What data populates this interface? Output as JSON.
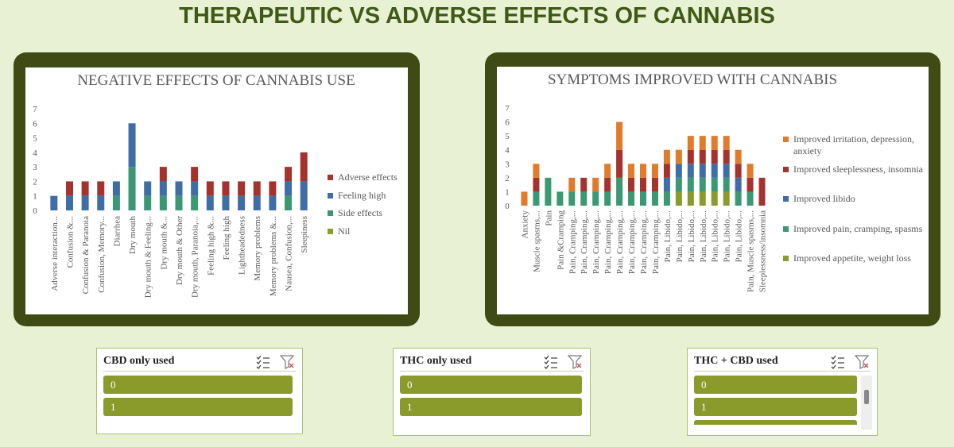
{
  "title": "THERAPEUTIC VS ADVERSE EFFECTS OF CANNABIS",
  "chart_data": [
    {
      "type": "bar",
      "stacked": true,
      "title": "NEGATIVE EFFECTS OF CANNABIS USE",
      "categories": [
        "Adverse interaction...",
        "Confusion &...",
        "Confusion & Paranoia",
        "Confusion, Memory...",
        "Diarrhea",
        "Dry mouth",
        "Dry mouth & Feeling...",
        "Dry mouth &...",
        "Dry mouth & Other",
        "Dry mouth, Paranoia,...",
        "Feeling high &...",
        "Feeling high",
        "Lightheadedness",
        "Memory problems",
        "Memory problems &...",
        "Nausea, Confusion,...",
        "Sleepiness"
      ],
      "series": [
        {
          "name": "Adverse effects",
          "color": "#a5332d",
          "values": [
            0,
            1,
            1,
            1,
            0,
            0,
            0,
            1,
            0,
            1,
            1,
            1,
            1,
            1,
            1,
            1,
            2
          ]
        },
        {
          "name": "Feeling high",
          "color": "#3f6ea6",
          "values": [
            1,
            1,
            1,
            1,
            1,
            3,
            1,
            1,
            1,
            1,
            1,
            1,
            1,
            1,
            1,
            1,
            2
          ]
        },
        {
          "name": "Side effects",
          "color": "#3a9873",
          "values": [
            0,
            0,
            0,
            0,
            1,
            3,
            1,
            1,
            1,
            1,
            0,
            0,
            0,
            0,
            0,
            1,
            0
          ]
        },
        {
          "name": "Nil",
          "color": "#8a9a2b",
          "values": [
            0,
            0,
            0,
            0,
            0,
            0,
            0,
            0,
            0,
            0,
            0,
            0,
            0,
            0,
            0,
            0,
            0
          ]
        }
      ],
      "ylim": [
        0,
        7
      ],
      "yticks": [
        0,
        1,
        2,
        3,
        4,
        5,
        6,
        7
      ],
      "grid": false,
      "legend": "right"
    },
    {
      "type": "bar",
      "stacked": true,
      "title": "SYMPTOMS IMPROVED WITH CANNABIS",
      "categories": [
        "Anxiety",
        "Muscle spasms,...",
        "Pain",
        "Pain &Cramping",
        "Pain, Cramping,...",
        "Pain, Cramping,...",
        "Pain, Cramping,...",
        "Pain, Cramping,...",
        "Pain, Cramping,...",
        "Pain, Cramping,...",
        "Pain, Cramping,...",
        "Pain, Cramping,...",
        "Pain, Libido,...",
        "Pain, Libido,...",
        "Pain, Libido,...",
        "Pain, Libido,...",
        "Pain, Libido,...",
        "Pain, Libido,...",
        "Pain, Libido,...",
        "Pain, Muscle spasms,...",
        "Sleeplessness/insomnia"
      ],
      "series": [
        {
          "name": "Improved irritation, depression, anxiety",
          "color": "#e07b2b",
          "values": [
            1,
            1,
            0,
            0,
            1,
            0,
            1,
            1,
            2,
            1,
            1,
            1,
            1,
            1,
            1,
            1,
            1,
            1,
            1,
            1,
            0
          ]
        },
        {
          "name": "Improved sleeplessness, insomnia",
          "color": "#a5332d",
          "values": [
            0,
            1,
            0,
            0,
            0,
            1,
            0,
            1,
            2,
            1,
            1,
            1,
            1,
            0,
            1,
            1,
            1,
            1,
            1,
            1,
            2
          ]
        },
        {
          "name": "Improved libido",
          "color": "#3f6ea6",
          "values": [
            0,
            0,
            0,
            0,
            0,
            0,
            0,
            0,
            0,
            0,
            0,
            0,
            1,
            1,
            1,
            1,
            1,
            1,
            1,
            0,
            0
          ]
        },
        {
          "name": "Improved pain, cramping, spasms",
          "color": "#3a9873",
          "values": [
            0,
            1,
            2,
            1,
            1,
            1,
            1,
            1,
            2,
            1,
            1,
            1,
            1,
            1,
            1,
            1,
            1,
            1,
            1,
            1,
            0
          ]
        },
        {
          "name": "Improved appetite, weight loss",
          "color": "#8a9a2b",
          "values": [
            0,
            0,
            0,
            0,
            0,
            0,
            0,
            0,
            0,
            0,
            0,
            0,
            0,
            1,
            1,
            1,
            1,
            1,
            0,
            0,
            0
          ]
        }
      ],
      "ylim": [
        0,
        7
      ],
      "yticks": [
        0,
        1,
        2,
        3,
        4,
        5,
        6,
        7
      ],
      "grid": false,
      "legend": "right"
    }
  ],
  "slicers": [
    {
      "title": "CBD only used",
      "items": [
        "0",
        "1"
      ]
    },
    {
      "title": "THC only used",
      "items": [
        "0",
        "1"
      ]
    },
    {
      "title": "THC + CBD used",
      "items": [
        "0",
        "1"
      ]
    }
  ]
}
